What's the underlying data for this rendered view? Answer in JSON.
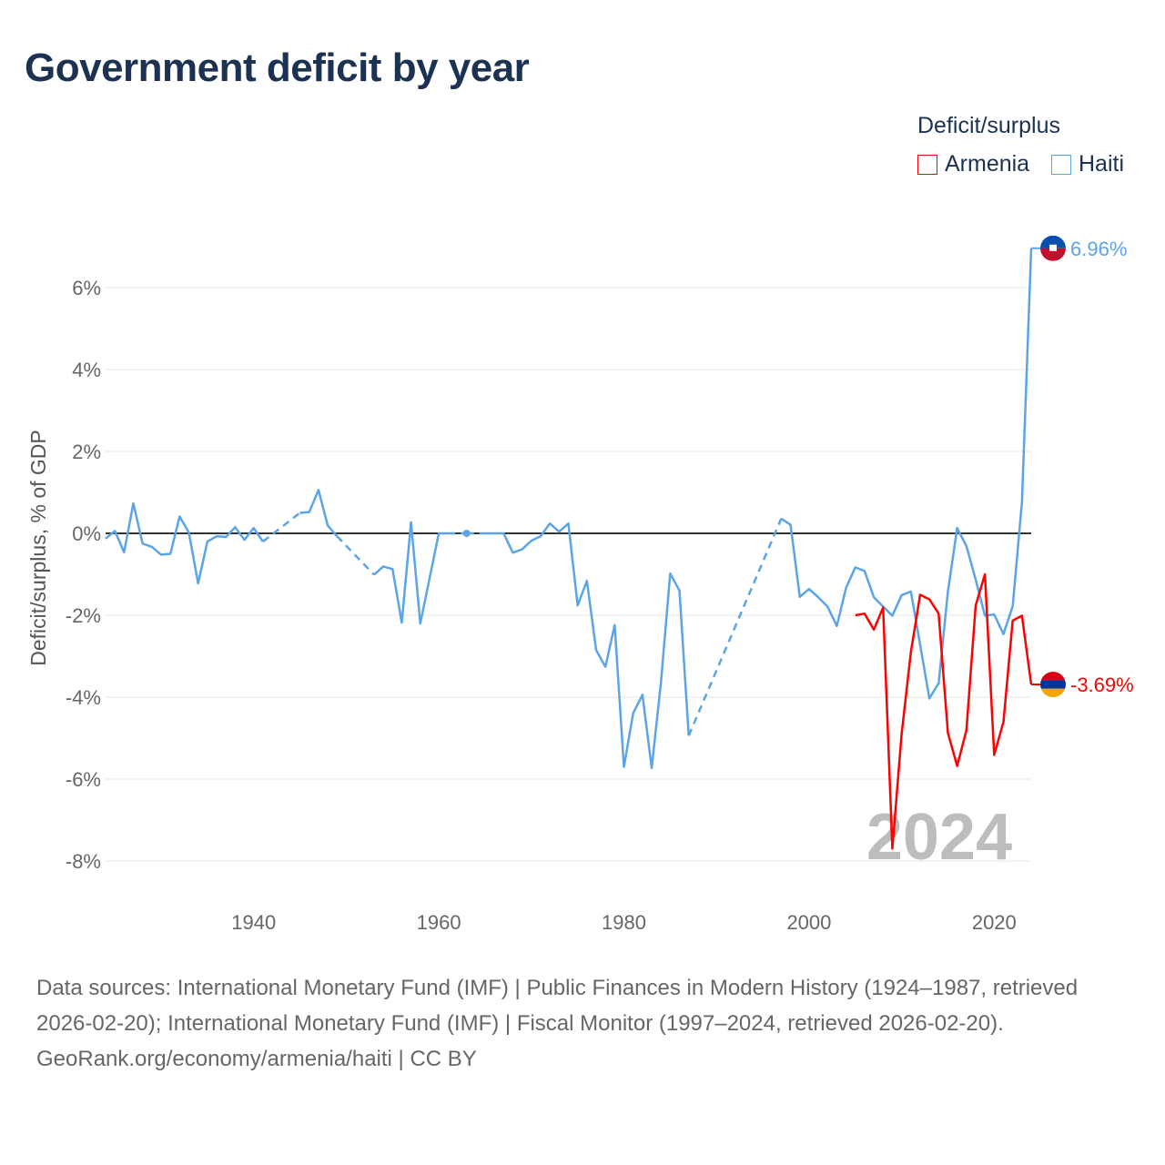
{
  "title": "Government deficit by year",
  "legend": {
    "title": "Deficit/surplus",
    "items": [
      {
        "name": "Armenia",
        "color": "#ff0000"
      },
      {
        "name": "Haiti",
        "color": "#5ba4e8"
      }
    ]
  },
  "chart_data": {
    "type": "line",
    "title": "Government deficit by year",
    "ylabel": "Deficit/surplus, % of GDP",
    "xlabel": "",
    "xlim": [
      1924,
      2024
    ],
    "ylim": [
      -8,
      7
    ],
    "x_ticks": [
      1940,
      1960,
      1980,
      2000,
      2020
    ],
    "y_ticks": [
      6,
      4,
      2,
      0,
      -2,
      -4,
      -6,
      -8
    ],
    "y_tick_labels": [
      "6%",
      "4%",
      "2%",
      "0%",
      "-2%",
      "-4%",
      "-6%",
      "-8%"
    ],
    "grid": true,
    "legend_position": "top-right",
    "year_watermark": "2024",
    "series": [
      {
        "name": "Haiti",
        "color": "#5ba4e8",
        "start_year": 1924,
        "end_label": "6.96%",
        "values": [
          -0.13,
          0.06,
          -0.46,
          0.73,
          -0.25,
          -0.33,
          -0.52,
          -0.5,
          0.41,
          0.02,
          -1.22,
          -0.2,
          -0.07,
          -0.09,
          0.15,
          -0.16,
          0.13,
          -0.2,
          null,
          null,
          null,
          0.5,
          0.52,
          1.06,
          0.19,
          -0.07,
          null,
          null,
          null,
          -1.01,
          -0.81,
          -0.87,
          -2.18,
          0.27,
          -2.2,
          -1.1,
          0,
          0,
          null,
          0,
          null,
          0,
          0,
          0,
          -0.47,
          -0.39,
          -0.18,
          -0.07,
          0.24,
          0.04,
          0.24,
          -1.76,
          -1.16,
          -2.85,
          -3.26,
          -2.24,
          -5.7,
          -4.39,
          -3.94,
          -5.73,
          -3.64,
          -0.98,
          -1.4,
          -4.94,
          null,
          null,
          null,
          null,
          null,
          null,
          null,
          null,
          null,
          0.36,
          0.21,
          -1.55,
          -1.36,
          -1.56,
          -1.79,
          -2.26,
          -1.33,
          -0.83,
          -0.92,
          -1.56,
          -1.79,
          -2.01,
          -1.51,
          -1.42,
          -2.72,
          -4.03,
          -3.66,
          -1.42,
          0.13,
          -0.31,
          -1.13,
          -2.01,
          -1.98,
          -2.46,
          -1.78,
          0.76,
          6.96
        ]
      },
      {
        "name": "Armenia",
        "color": "#ff0000",
        "start_year": 2005,
        "end_label": "-3.69%",
        "values": [
          -2.0,
          -1.96,
          -2.35,
          -1.81,
          -7.7,
          -4.9,
          -2.9,
          -1.5,
          -1.61,
          -1.96,
          -4.87,
          -5.68,
          -4.81,
          -1.76,
          -1.0,
          -5.41,
          -4.61,
          -2.13,
          -2.01,
          -3.69
        ]
      }
    ]
  },
  "footer": {
    "sources": "Data sources: International Monetary Fund (IMF) | Public Finances in Modern History (1924–1987, retrieved 2026-02-20); International Monetary Fund (IMF) | Fiscal Monitor (1997–2024, retrieved 2026-02-20).",
    "credit": "GeoRank.org/economy/armenia/haiti | CC BY"
  }
}
